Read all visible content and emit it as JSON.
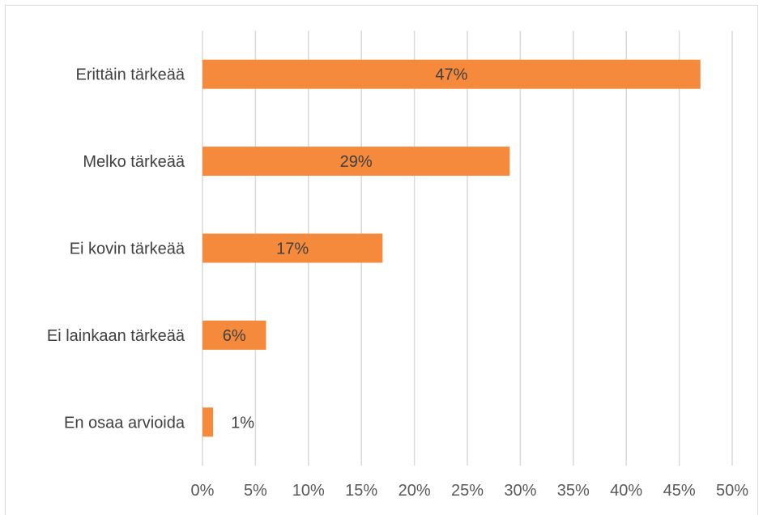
{
  "chart_data": {
    "type": "bar",
    "orientation": "horizontal",
    "categories": [
      "Erittäin tärkeää",
      "Melko tärkeää",
      "Ei kovin tärkeää",
      "Ei lainkaan tärkeää",
      "En osaa arvioida"
    ],
    "values": [
      47,
      29,
      17,
      6,
      1
    ],
    "data_labels": [
      "47%",
      "29%",
      "17%",
      "6%",
      "1%"
    ],
    "xlim": [
      0,
      50
    ],
    "x_ticks": [
      0,
      5,
      10,
      15,
      20,
      25,
      30,
      35,
      40,
      45,
      50
    ],
    "x_tick_labels": [
      "0%",
      "5%",
      "10%",
      "15%",
      "20%",
      "25%",
      "30%",
      "35%",
      "40%",
      "45%",
      "50%"
    ],
    "title": "",
    "xlabel": "",
    "ylabel": "",
    "grid": "vertical",
    "legend": "none",
    "colors": {
      "bar": "#f58a3c",
      "gridline": "#d9d9d9",
      "text": "#404040",
      "axis_text": "#595959"
    }
  }
}
